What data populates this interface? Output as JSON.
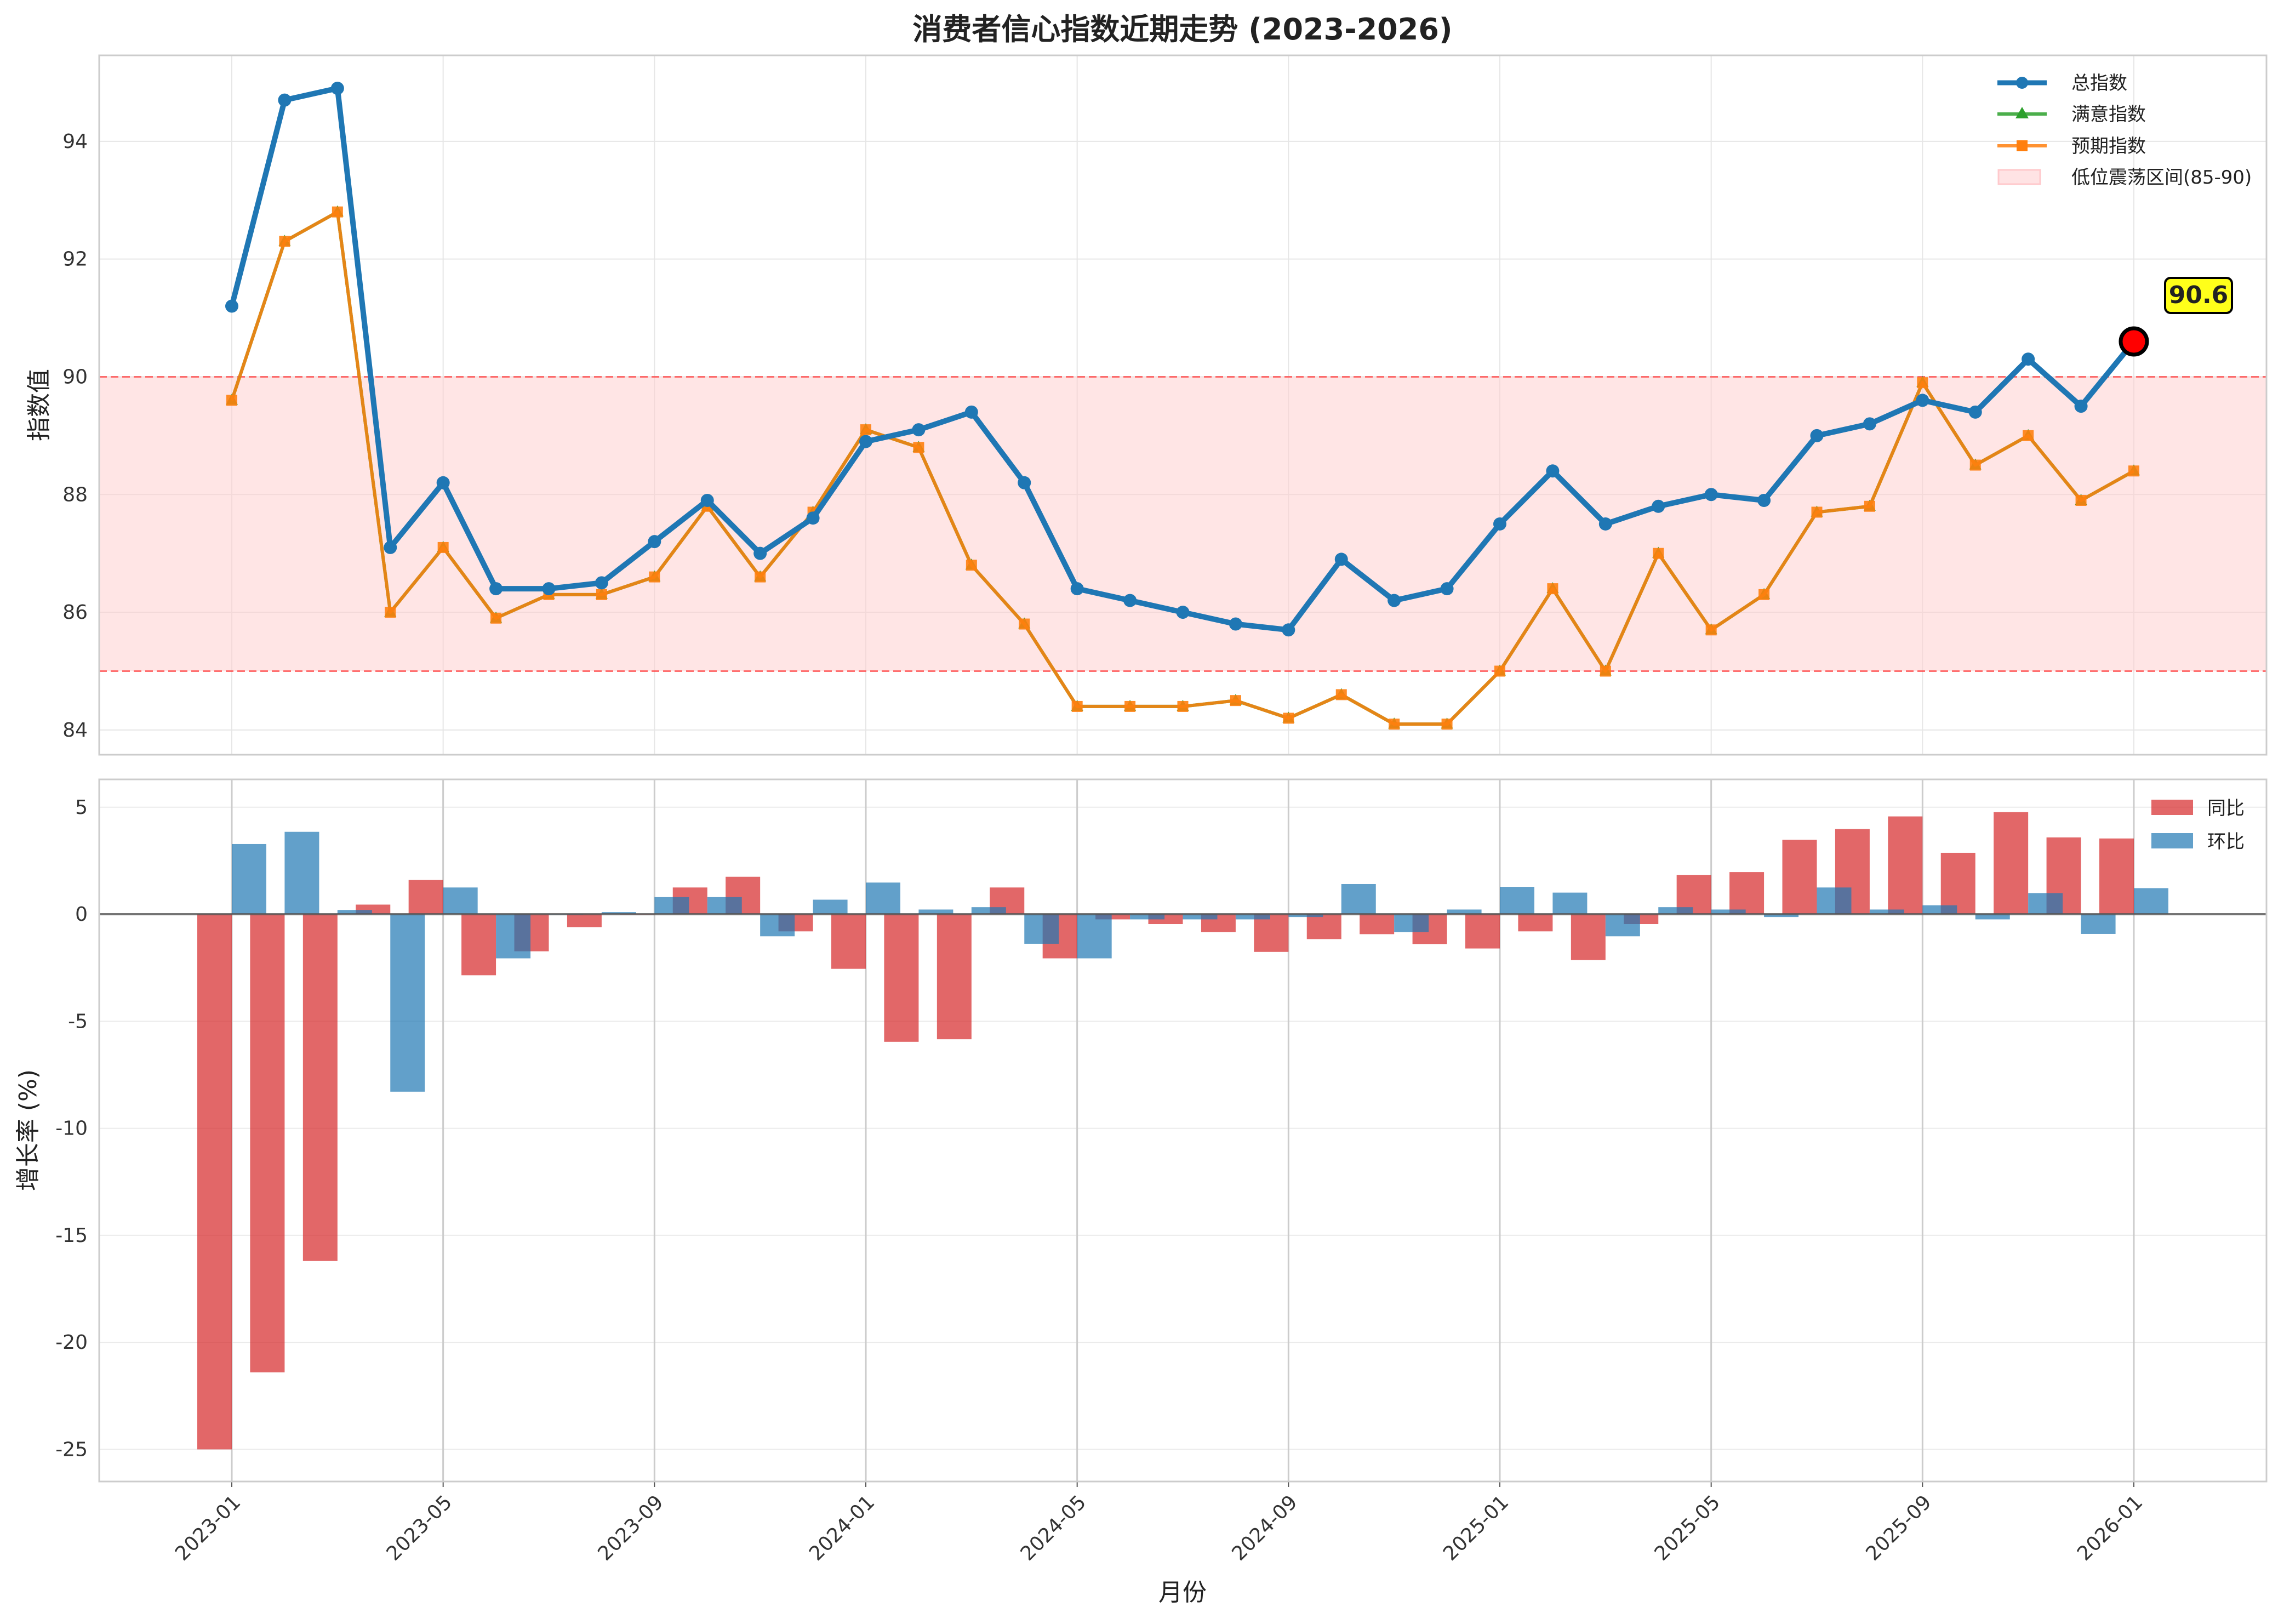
{
  "title": "消费者信心指数近期走势 (2023-2026)",
  "chart_data": [
    {
      "type": "line",
      "title": "消费者信心指数近期走势 (2023-2026)",
      "xlabel": "",
      "ylabel": "指数值",
      "ylim": [
        83.58,
        95.46
      ],
      "yticks": [
        84,
        86,
        88,
        90,
        92,
        94
      ],
      "grid": true,
      "legend": "top-right",
      "x": [
        "2023-01",
        "2023-02",
        "2023-03",
        "2023-04",
        "2023-05",
        "2023-06",
        "2023-07",
        "2023-08",
        "2023-09",
        "2023-10",
        "2023-11",
        "2023-12",
        "2024-01",
        "2024-02",
        "2024-03",
        "2024-04",
        "2024-05",
        "2024-06",
        "2024-07",
        "2024-08",
        "2024-09",
        "2024-10",
        "2024-11",
        "2024-12",
        "2025-01",
        "2025-02",
        "2025-03",
        "2025-04",
        "2025-05",
        "2025-06",
        "2025-07",
        "2025-08",
        "2025-09",
        "2025-10",
        "2025-11",
        "2025-12",
        "2026-01"
      ],
      "series": [
        {
          "name": "总指数",
          "color": "#1f77b4",
          "marker": "circle",
          "values": [
            91.2,
            94.7,
            94.9,
            87.1,
            88.2,
            86.4,
            86.4,
            86.5,
            87.2,
            87.9,
            87.0,
            87.6,
            88.9,
            89.1,
            89.4,
            88.2,
            86.4,
            86.2,
            86.0,
            85.8,
            85.7,
            86.9,
            86.2,
            86.4,
            87.5,
            88.4,
            87.5,
            87.8,
            88.0,
            87.9,
            89.0,
            89.2,
            89.6,
            89.4,
            90.3,
            89.5,
            90.6
          ]
        },
        {
          "name": "满意指数",
          "color": "#2ca02c",
          "marker": "triangle",
          "values": [
            89.6,
            92.3,
            92.8,
            86.0,
            87.1,
            85.9,
            86.3,
            86.3,
            86.6,
            87.8,
            86.6,
            87.7,
            89.1,
            88.8,
            86.8,
            85.8,
            84.4,
            84.4,
            84.4,
            84.5,
            84.2,
            84.6,
            84.1,
            84.1,
            85.0,
            86.4,
            85.0,
            87.0,
            85.7,
            86.3,
            87.7,
            87.8,
            89.9,
            88.5,
            89.0,
            87.9,
            88.4
          ]
        },
        {
          "name": "预期指数",
          "color": "#ff7f0e",
          "marker": "square",
          "values": [
            89.6,
            92.3,
            92.8,
            86.0,
            87.1,
            85.9,
            86.3,
            86.3,
            86.6,
            87.8,
            86.6,
            87.7,
            89.1,
            88.8,
            86.8,
            85.8,
            84.4,
            84.4,
            84.4,
            84.5,
            84.2,
            84.6,
            84.1,
            84.1,
            85.0,
            86.4,
            85.0,
            87.0,
            85.7,
            86.3,
            87.7,
            87.8,
            89.9,
            88.5,
            89.0,
            87.9,
            88.4
          ]
        }
      ],
      "band": {
        "label": "低位震荡区间(85-90)",
        "range": [
          85,
          90
        ],
        "color": "#ffcccc"
      },
      "annotation": {
        "label": "90.6",
        "x": "2026-01",
        "value": 90.6,
        "color": "#ff0000",
        "box_color": "#ffff1a"
      }
    },
    {
      "type": "bar",
      "xlabel": "月份",
      "ylabel": "增长率 (%)",
      "ylim": [
        -26.5,
        6.3
      ],
      "yticks": [
        5,
        0,
        -5,
        -10,
        -15,
        -20,
        -25
      ],
      "grid": true,
      "legend": "top-right",
      "xticks": [
        "2023-01",
        "2023-05",
        "2023-09",
        "2024-01",
        "2024-05",
        "2024-09",
        "2025-01",
        "2025-05",
        "2025-09",
        "2026-01"
      ],
      "series": [
        {
          "name": "同比",
          "color": "#d62728",
          "values": [
            -25.0,
            -21.4,
            -16.2,
            0.45,
            1.6,
            -2.85,
            -1.73,
            -0.6,
            0.0,
            1.25,
            1.75,
            -0.8,
            -2.55,
            -5.96,
            -5.84,
            1.25,
            -2.06,
            -0.24,
            -0.46,
            -0.83,
            -1.76,
            -1.16,
            -0.93,
            -1.39,
            -1.6,
            -0.8,
            -2.14,
            -0.46,
            1.84,
            1.97,
            3.48,
            3.98,
            4.57,
            2.87,
            4.77,
            3.59,
            3.54
          ]
        },
        {
          "name": "环比",
          "color": "#1f77b4",
          "values": [
            3.28,
            3.85,
            0.2,
            -8.29,
            1.25,
            -2.06,
            0.0,
            0.1,
            0.8,
            0.8,
            -1.03,
            0.68,
            1.48,
            0.22,
            0.33,
            -1.38,
            -2.06,
            -0.24,
            -0.24,
            -0.24,
            -0.13,
            1.41,
            -0.83,
            0.22,
            1.28,
            1.01,
            -1.03,
            0.33,
            0.22,
            -0.13,
            1.25,
            0.22,
            0.42,
            -0.24,
            0.99,
            -0.92,
            1.22
          ]
        }
      ]
    }
  ]
}
